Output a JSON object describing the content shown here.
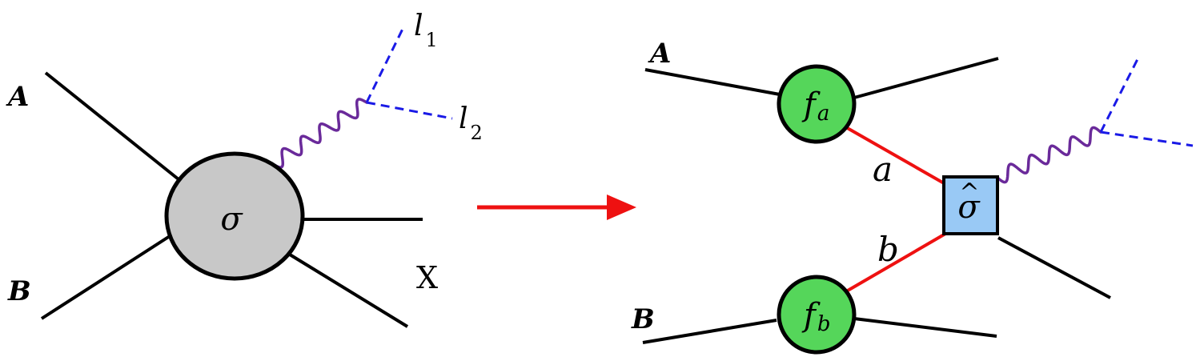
{
  "left": {
    "incoming_a": "A",
    "incoming_b": "B",
    "blob": "σ",
    "lepton_1": {
      "base": "l",
      "sub": "1"
    },
    "lepton_2": {
      "base": "l",
      "sub": "2"
    },
    "remnant": "X"
  },
  "right": {
    "incoming_a": "A",
    "incoming_b": "B",
    "pdf_a": {
      "base": "f",
      "sub": "a"
    },
    "pdf_b": {
      "base": "f",
      "sub": "b"
    },
    "parton_a": "a",
    "parton_b": "b",
    "hard": {
      "base": "σ",
      "accent": "^"
    }
  },
  "colors": {
    "hadron_line": "#000000",
    "blob_fill": "#c8c8c8",
    "pdf_fill": "#55d65a",
    "hard_fill": "#99c9f5",
    "parton_line": "#ee1111",
    "lepton_line": "#1a1ae6",
    "boson_line": "#6a2a9a",
    "arrow": "#ee1111"
  }
}
